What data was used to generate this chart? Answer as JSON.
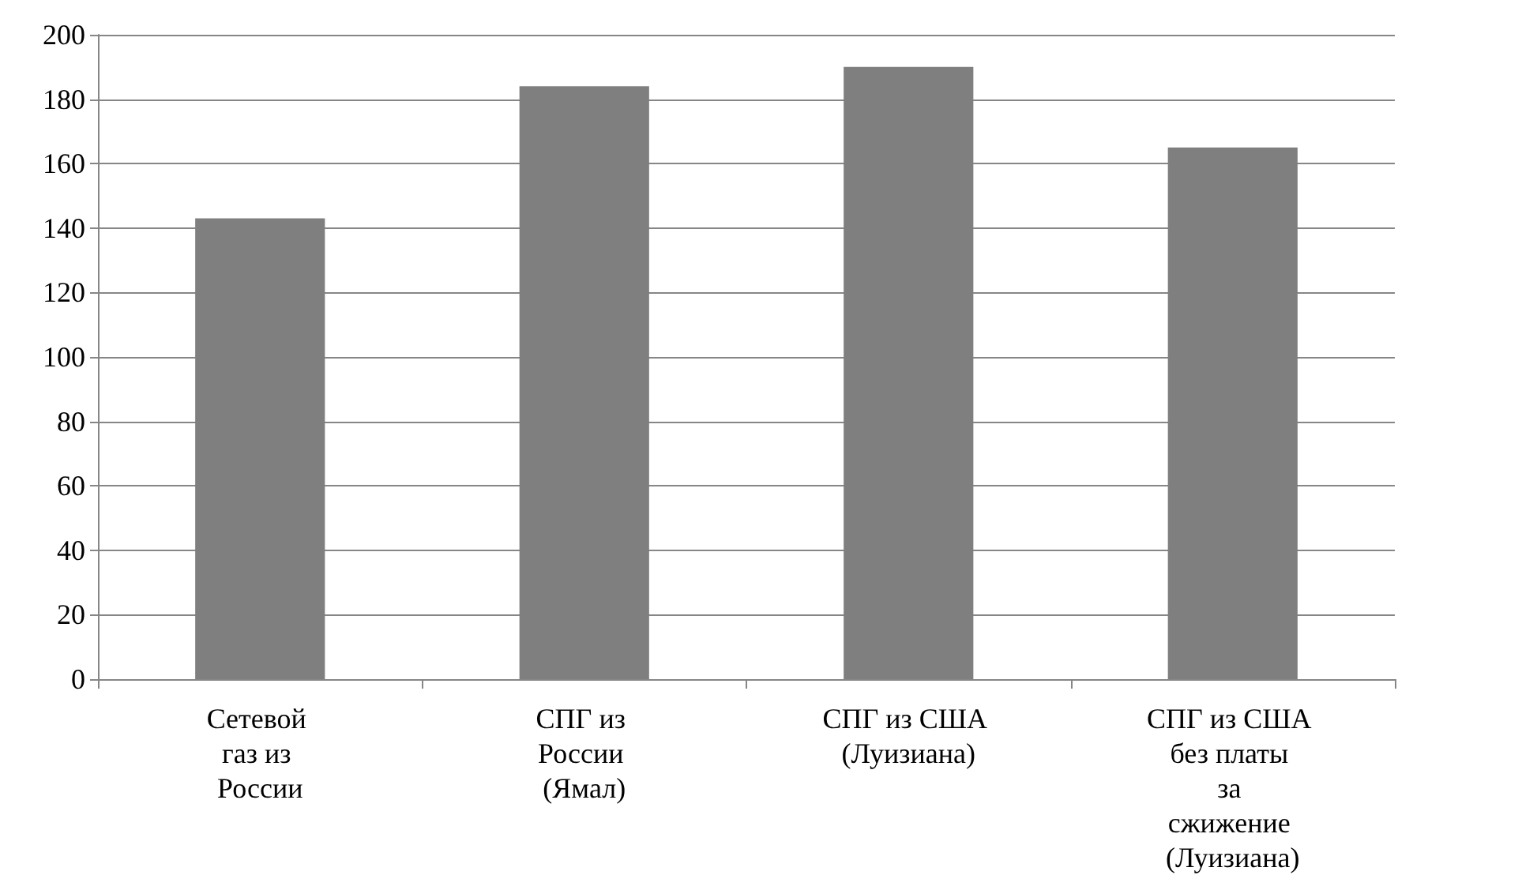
{
  "chart_data": {
    "type": "bar",
    "categories": [
      "Сетевой газ из России",
      "СПГ из России (Ямал)",
      "СПГ из США (Луизиана)",
      "СПГ из США без платы за сжижение (Луизиана)"
    ],
    "values": [
      143,
      184,
      190,
      165
    ],
    "color": "#7f7f7f",
    "ylim": [
      0,
      200
    ],
    "yticks": [
      0,
      20,
      40,
      60,
      80,
      100,
      120,
      140,
      160,
      180,
      200
    ],
    "grid": "y"
  }
}
